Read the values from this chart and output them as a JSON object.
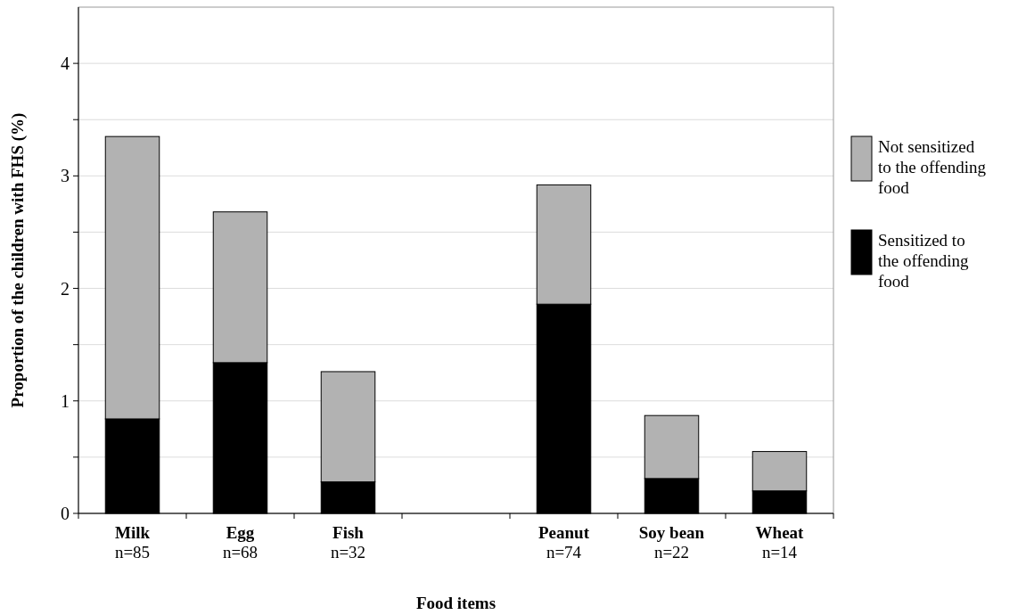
{
  "chart_data": {
    "type": "bar",
    "stacked": true,
    "xlabel": "Food items",
    "ylabel": "Proportion of the children with FHS (%)",
    "categories": [
      "Milk\nn=85",
      "Egg\nn=68",
      "Fish\nn=32",
      null,
      "Peanut\nn=74",
      "Soy bean\nn=22",
      "Wheat\nn=14"
    ],
    "series": [
      {
        "name": "Sensitized to the offending food",
        "color": "#000000",
        "values": [
          0.84,
          1.34,
          0.28,
          null,
          1.86,
          0.31,
          0.2
        ]
      },
      {
        "name": "Not sensitized to the offending food",
        "color": "#b2b2b2",
        "values": [
          2.51,
          1.34,
          0.98,
          null,
          1.06,
          0.56,
          0.35
        ]
      }
    ],
    "ylim": [
      0,
      4.5
    ],
    "yticks": [
      0,
      {
        "value": 0.5,
        "label": null
      },
      1,
      {
        "value": 1.5,
        "label": null
      },
      2,
      {
        "value": 2.5,
        "label": null
      },
      3,
      {
        "value": 3.5,
        "label": null
      },
      4
    ],
    "grid": "y",
    "legend": "right"
  }
}
